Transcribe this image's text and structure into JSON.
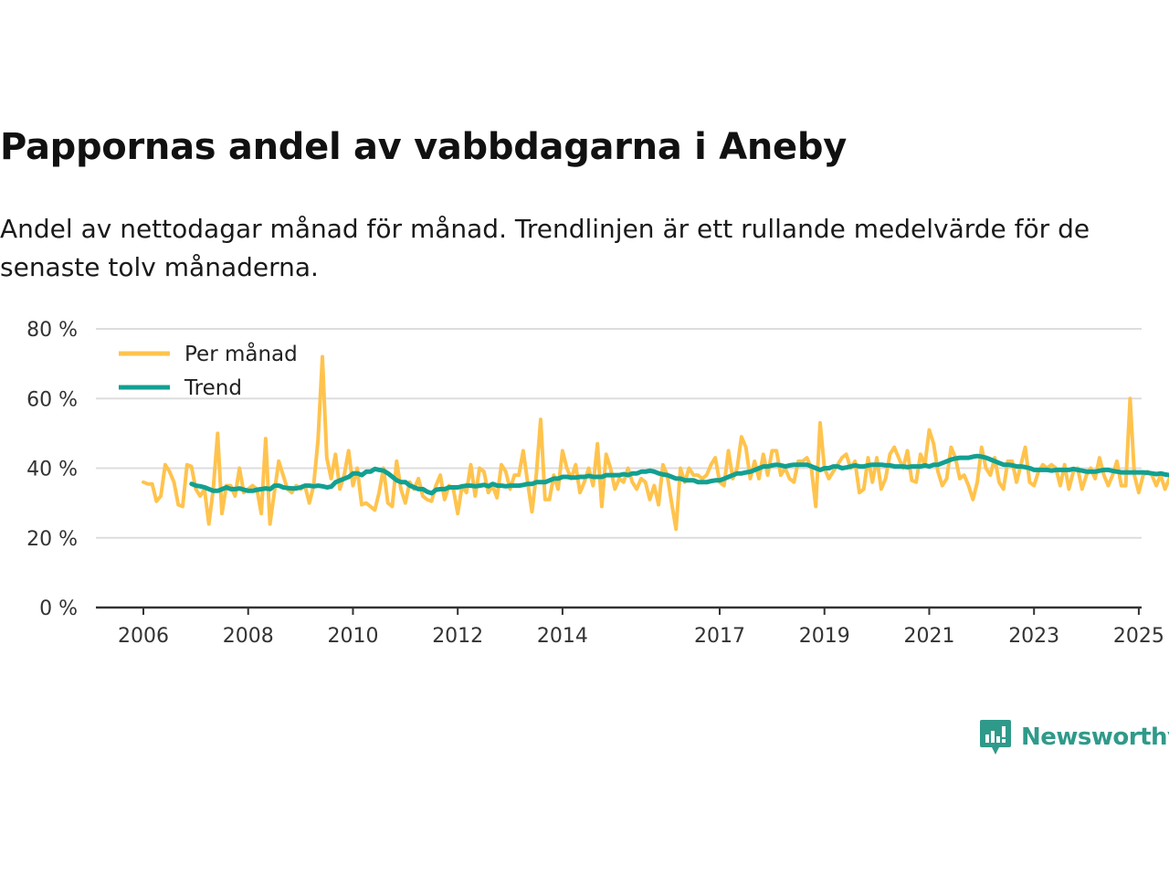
{
  "title": "Pappornas andel av vabbdagarna i Aneby",
  "subtitle": "Andel av nettodagar månad för månad. Trendlinjen är ett rullande medelvärde för de senaste tolv månaderna.",
  "brand": "Newsworthy",
  "colors": {
    "monthly": "#ffc34d",
    "trend": "#12a091",
    "grid": "#dddddd",
    "axis": "#333333"
  },
  "chart_data": {
    "type": "line",
    "ylim": [
      0,
      80
    ],
    "xlim": [
      2006,
      2025.96
    ],
    "yticks": [
      0,
      20,
      40,
      60,
      80
    ],
    "ytick_labels": [
      "0 %",
      "20 %",
      "40 %",
      "60 %",
      "80 %"
    ],
    "xticks": [
      2006,
      2008,
      2010,
      2012,
      2014,
      2017,
      2019,
      2021,
      2023,
      2025
    ],
    "xtick_labels": [
      "2006",
      "2008",
      "2010",
      "2012",
      "2014",
      "2017",
      "2019",
      "2021",
      "2023",
      "2025"
    ],
    "legend": [
      "Per månad",
      "Trend"
    ],
    "legend_position": "top-left",
    "x_start": 2006.0,
    "x_step": 0.0833333,
    "series": [
      {
        "name": "Per månad",
        "values": [
          36,
          35.5,
          35.5,
          30.5,
          32,
          41,
          39,
          36,
          29.5,
          29,
          41,
          40.5,
          34,
          32,
          34,
          24,
          34,
          50,
          27,
          35,
          35,
          32,
          40,
          33,
          34,
          35,
          34,
          27,
          48.5,
          24,
          33,
          42,
          38,
          34,
          33,
          35,
          34,
          35,
          30,
          35,
          48,
          72,
          43,
          37,
          44,
          34,
          38,
          45,
          35,
          40,
          29.5,
          30,
          29,
          28,
          33,
          40,
          30,
          29,
          42,
          34,
          30,
          36,
          34,
          37,
          32,
          31,
          30.5,
          35,
          38,
          31,
          35,
          34,
          27,
          35,
          33,
          41,
          32,
          40,
          39,
          33,
          35,
          31.5,
          41,
          39,
          34,
          38,
          38,
          45,
          36,
          27.5,
          38,
          54,
          31,
          31,
          38,
          34,
          45,
          40,
          37,
          41,
          33,
          36,
          40,
          35,
          47,
          29,
          44,
          40,
          34,
          37,
          36,
          40,
          36,
          34,
          37,
          36,
          31,
          35,
          29.5,
          41,
          38,
          30,
          22.5,
          40,
          36,
          40,
          38,
          38,
          37,
          38,
          41,
          43,
          36,
          35,
          45,
          37,
          40,
          49,
          46,
          37,
          42,
          37,
          44,
          38,
          45,
          45,
          38,
          40,
          37,
          36,
          42,
          42,
          43,
          40,
          29,
          53,
          40,
          37,
          39,
          41,
          43,
          44,
          40,
          42,
          33,
          34,
          43,
          36,
          43,
          34,
          37,
          44,
          46,
          43,
          40,
          45,
          36.5,
          36,
          44,
          41,
          51,
          47,
          39,
          35,
          37,
          46,
          43,
          37,
          38,
          35,
          31,
          36,
          46,
          40,
          38,
          43,
          36,
          34,
          42,
          42,
          36,
          41,
          46,
          36,
          35,
          39,
          41,
          40,
          41,
          40,
          35,
          41,
          34,
          39,
          40,
          34,
          38,
          40,
          37,
          43,
          38,
          35,
          38,
          42,
          35,
          35,
          60,
          38,
          33,
          38,
          39,
          38,
          35,
          38,
          34,
          37,
          36,
          37
        ]
      },
      {
        "name": "Trend",
        "values": [
          35.5,
          35,
          34.8,
          34.5,
          34,
          33.5,
          33.5,
          34,
          34.5,
          34,
          34,
          34.2,
          33.8,
          33.5,
          33.5,
          33.8,
          34,
          34.2,
          34,
          35,
          35,
          34.5,
          34.3,
          34.2,
          34.2,
          34.5,
          35,
          35,
          34.8,
          35,
          34.8,
          34.5,
          34.7,
          36,
          36.5,
          37,
          37.5,
          38.5,
          38.5,
          38,
          39,
          39,
          39.8,
          39.5,
          39.3,
          38.5,
          37.5,
          36.5,
          36,
          36,
          35,
          34.5,
          34,
          34,
          33.2,
          32.8,
          33.8,
          34,
          34,
          34.5,
          34.5,
          34.5,
          34.8,
          35,
          35,
          34.8,
          35,
          35.2,
          34.8,
          35.5,
          35,
          35,
          34.8,
          35,
          35,
          35,
          35.2,
          35.5,
          35.5,
          36,
          36,
          36,
          36.5,
          37,
          37,
          37.5,
          37.5,
          37.3,
          37.3,
          37.5,
          37.5,
          37.8,
          37.5,
          37.5,
          37.5,
          38,
          38,
          38,
          38,
          38.3,
          38,
          38.5,
          38.5,
          39,
          39,
          39.3,
          39,
          38.5,
          38.2,
          38,
          37.5,
          37,
          37,
          36.5,
          36.5,
          36.5,
          36,
          36,
          36,
          36.3,
          36.5,
          36.5,
          37,
          37.5,
          38,
          38.5,
          38.5,
          38.8,
          39,
          39.5,
          40,
          40.5,
          40.5,
          40.8,
          41,
          40.8,
          40.5,
          40.8,
          41,
          41,
          41,
          41,
          40.5,
          40,
          39.5,
          40,
          40,
          40.5,
          40.5,
          40,
          40.2,
          40.5,
          40.8,
          40.5,
          40.5,
          40.8,
          41,
          41,
          41,
          40.8,
          40.8,
          40.5,
          40.5,
          40.5,
          40.3,
          40.5,
          40.5,
          40.5,
          40.8,
          40.5,
          41,
          41,
          41.5,
          42,
          42.5,
          42.8,
          43,
          43,
          43,
          43.3,
          43.5,
          43.3,
          43,
          42.5,
          42,
          41.5,
          41,
          41,
          40.8,
          40.5,
          40.5,
          40.3,
          40,
          39.5,
          39.5,
          39.5,
          39.5,
          39.3,
          39.5,
          39.5,
          39.5,
          39.5,
          39.8,
          39.5,
          39.3,
          39,
          39,
          39,
          39.3,
          39.5,
          39.5,
          39.2,
          39,
          38.8,
          38.8,
          38.8,
          38.8,
          38.8,
          38.8,
          38.7,
          38.5,
          38.3,
          38.5,
          38.2,
          38,
          37.8,
          38,
          38.3,
          38.3,
          38.5,
          38.3,
          38,
          38,
          38.2,
          38.3,
          38,
          37.8,
          37.5,
          37,
          37
        ]
      }
    ],
    "trend_x_start": 2006.92
  }
}
